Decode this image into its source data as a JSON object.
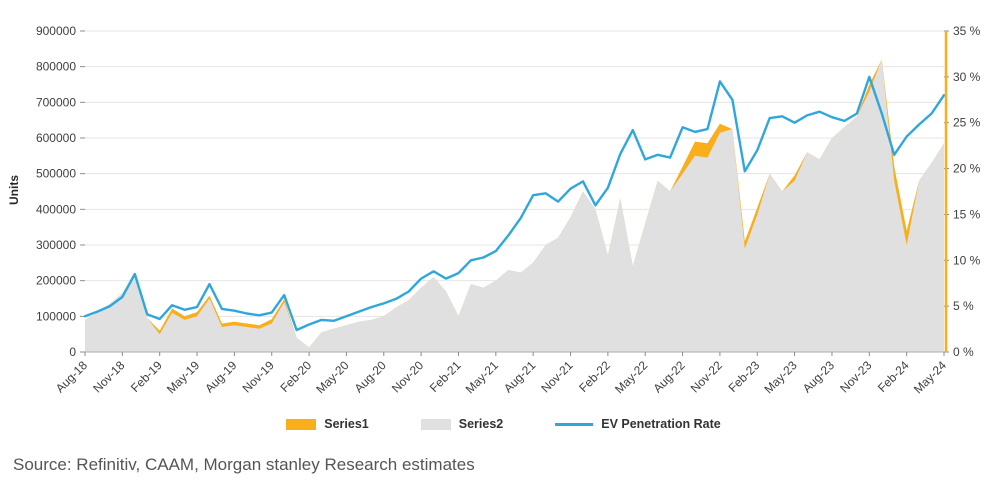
{
  "page": {
    "source_text": "Source: Refinitiv, CAAM, Morgan stanley Research estimates"
  },
  "axis": {
    "left_title": "Units"
  },
  "colors": {
    "series1": "#FAAE1C",
    "series2": "#E0E0E0",
    "line": "#2FA7DD",
    "grid": "#E4E4E4",
    "axis": "#ABABAB",
    "tick": "#8C8C8C",
    "right_accent": "#FAAE1C"
  },
  "chart_data": {
    "type": "area",
    "title": "",
    "ylabel": "Units",
    "grid": true,
    "legend_position": "bottom",
    "x_tick_every": 3,
    "left_axis": {
      "min": 0,
      "max": 900000,
      "step": 100000,
      "tick_labels": [
        "0",
        "100000",
        "200000",
        "300000",
        "400000",
        "500000",
        "600000",
        "700000",
        "800000",
        "900000"
      ]
    },
    "right_axis": {
      "min": 0,
      "max": 35,
      "step": 5,
      "tick_labels": [
        "0 %",
        "5 %",
        "10 %",
        "15 %",
        "20 %",
        "25 %",
        "30 %",
        "35 %"
      ]
    },
    "categories": [
      "Aug-18",
      "Sep-18",
      "Oct-18",
      "Nov-18",
      "Dec-18",
      "Jan-19",
      "Feb-19",
      "Mar-19",
      "Apr-19",
      "May-19",
      "Jun-19",
      "Jul-19",
      "Aug-19",
      "Sep-19",
      "Oct-19",
      "Nov-19",
      "Dec-19",
      "Jan-20",
      "Feb-20",
      "Mar-20",
      "Apr-20",
      "May-20",
      "Jun-20",
      "Jul-20",
      "Aug-20",
      "Sep-20",
      "Oct-20",
      "Nov-20",
      "Dec-20",
      "Jan-21",
      "Feb-21",
      "Mar-21",
      "Apr-21",
      "May-21",
      "Jun-21",
      "Jul-21",
      "Aug-21",
      "Sep-21",
      "Oct-21",
      "Nov-21",
      "Dec-21",
      "Jan-22",
      "Feb-22",
      "Mar-22",
      "Apr-22",
      "May-22",
      "Jun-22",
      "Jul-22",
      "Aug-22",
      "Sep-22",
      "Oct-22",
      "Nov-22",
      "Dec-22",
      "Jan-23",
      "Feb-23",
      "Mar-23",
      "Apr-23",
      "May-23",
      "Jun-23",
      "Jul-23",
      "Aug-23",
      "Sep-23",
      "Oct-23",
      "Nov-23",
      "Dec-23",
      "Jan-24",
      "Feb-24",
      "Mar-24",
      "Apr-24",
      "May-24"
    ],
    "series": [
      {
        "name": "Series1",
        "type": "area",
        "axis": "left",
        "color": "#FAAE1C",
        "values": [
          90000,
          110000,
          135000,
          165000,
          220000,
          95000,
          60000,
          122000,
          100000,
          112000,
          158000,
          80000,
          85000,
          80000,
          75000,
          92000,
          148000,
          40000,
          13000,
          55000,
          65000,
          75000,
          85000,
          90000,
          100000,
          125000,
          145000,
          180000,
          210000,
          170000,
          100000,
          190000,
          180000,
          200000,
          230000,
          222000,
          250000,
          300000,
          320000,
          378000,
          450000,
          400000,
          270000,
          430000,
          240000,
          360000,
          480000,
          450000,
          520000,
          590000,
          585000,
          640000,
          625000,
          310000,
          405000,
          500000,
          450000,
          495000,
          560000,
          540000,
          600000,
          630000,
          660000,
          750000,
          820000,
          520000,
          340000,
          480000,
          530000,
          585000
        ]
      },
      {
        "name": "Series2",
        "type": "area",
        "axis": "left",
        "color": "#E0E0E0",
        "values": [
          90000,
          110000,
          135000,
          165000,
          220000,
          95000,
          50000,
          110000,
          90000,
          100000,
          150000,
          70000,
          75000,
          70000,
          65000,
          80000,
          140000,
          40000,
          13000,
          55000,
          65000,
          75000,
          85000,
          90000,
          100000,
          125000,
          145000,
          180000,
          210000,
          170000,
          100000,
          190000,
          180000,
          200000,
          230000,
          222000,
          250000,
          300000,
          320000,
          378000,
          450000,
          400000,
          270000,
          430000,
          240000,
          360000,
          480000,
          450000,
          500000,
          550000,
          545000,
          615000,
          625000,
          290000,
          385000,
          500000,
          450000,
          480000,
          560000,
          540000,
          600000,
          630000,
          660000,
          730000,
          820000,
          480000,
          300000,
          480000,
          530000,
          585000
        ]
      },
      {
        "name": "EV Penetration Rate",
        "type": "line",
        "axis": "right",
        "color": "#2FA7DD",
        "values": [
          3.9,
          4.4,
          5.0,
          6.0,
          8.5,
          4.1,
          3.6,
          5.1,
          4.6,
          4.9,
          7.4,
          4.7,
          4.5,
          4.2,
          4.0,
          4.3,
          6.2,
          2.4,
          3.0,
          3.5,
          3.4,
          3.9,
          4.4,
          4.9,
          5.3,
          5.8,
          6.6,
          8.0,
          8.8,
          8.0,
          8.6,
          10.0,
          10.3,
          11.0,
          12.7,
          14.6,
          17.1,
          17.3,
          16.4,
          17.8,
          18.6,
          16.0,
          17.9,
          21.6,
          24.2,
          21.0,
          21.5,
          21.2,
          24.5,
          24.0,
          24.3,
          29.5,
          27.5,
          19.7,
          22.0,
          25.5,
          25.7,
          25.0,
          25.8,
          26.2,
          25.6,
          25.2,
          26.0,
          30.0,
          26.0,
          21.5,
          23.5,
          24.8,
          26.0,
          28.0
        ]
      }
    ]
  }
}
